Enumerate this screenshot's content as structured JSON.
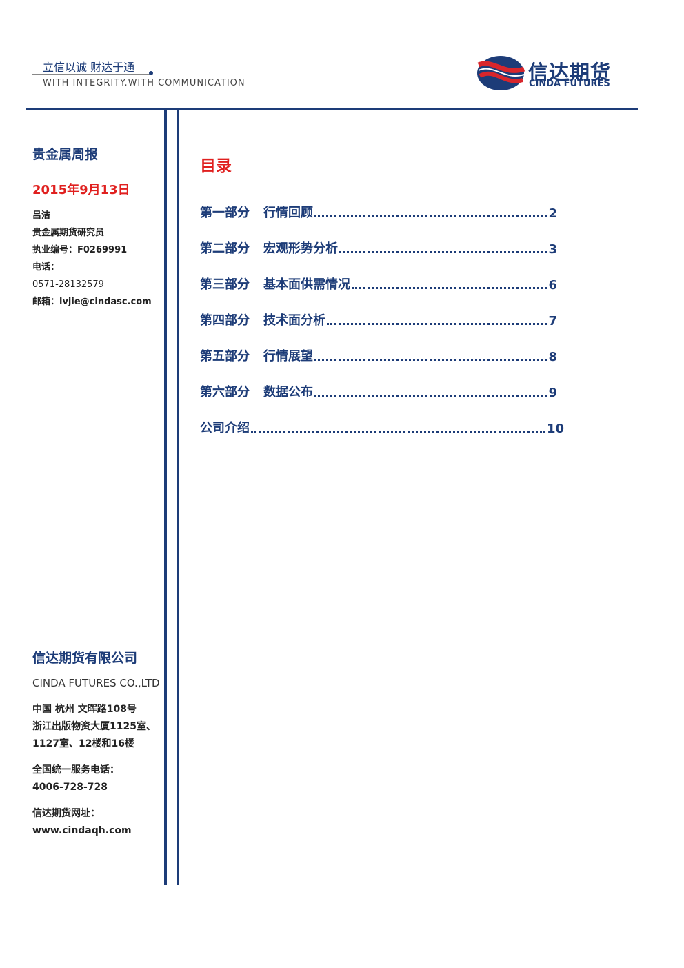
{
  "header": {
    "slogan": "立信以诚  财达于通",
    "slogan_en": "WITH INTEGRITY.WITH COMMUNICATION",
    "logo_cn": "信达期货",
    "logo_en": "CINDA FUTURES"
  },
  "sidebar": {
    "report_title": "贵金属周报",
    "date": "2015年9月13日",
    "author": [
      "吕洁",
      "贵金属期货研究员",
      "执业编号：F0269991",
      "电话：",
      "0571-28132579",
      "邮箱：lvjie@cindasc.com"
    ],
    "company": "信达期货有限公司",
    "company_en": "CINDA FUTURES CO.,LTD",
    "address": [
      "中国 杭州 文晖路108号",
      "浙江出版物资大厦1125室、",
      "1127室、12楼和16楼"
    ],
    "hotline_label": "全国统一服务电话：",
    "hotline": "4006-728-728",
    "website_label": "信达期货网址：",
    "website": "www.cindaqh.com"
  },
  "toc": {
    "title": "目录",
    "entries": [
      {
        "section": "第一部分",
        "title": "行情回顾",
        "page": 2
      },
      {
        "section": "第二部分",
        "title": "宏观形势分析",
        "page": 3
      },
      {
        "section": "第三部分",
        "title": "基本面供需情况",
        "page": 6
      },
      {
        "section": "第四部分",
        "title": "技术面分析",
        "page": 7
      },
      {
        "section": "第五部分",
        "title": "行情展望",
        "page": 8
      },
      {
        "section": "第六部分",
        "title": "数据公布",
        "page": 9
      },
      {
        "title": "公司介绍",
        "page": 10
      }
    ]
  }
}
